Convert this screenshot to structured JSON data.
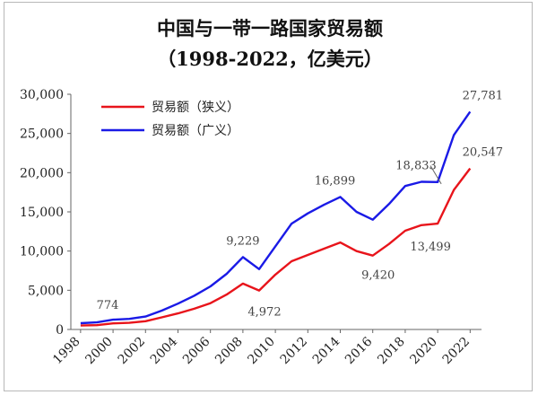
{
  "chart_data": {
    "type": "line",
    "title": "中国与一带一路国家贸易额",
    "subtitle": "（1998-2022，亿美元）",
    "xlabel": "",
    "ylabel": "",
    "x": [
      1998,
      1999,
      2000,
      2001,
      2002,
      2003,
      2004,
      2005,
      2006,
      2007,
      2008,
      2009,
      2010,
      2011,
      2012,
      2013,
      2014,
      2015,
      2016,
      2017,
      2018,
      2019,
      2020,
      2021,
      2022
    ],
    "ylim": [
      0,
      30000
    ],
    "yticks": [
      0,
      5000,
      10000,
      15000,
      20000,
      25000,
      30000
    ],
    "ytick_labels": [
      "0",
      "5,000",
      "10,000",
      "15,000",
      "20,000",
      "25,000",
      "30,000"
    ],
    "xticks": [
      1998,
      2000,
      2002,
      2004,
      2006,
      2008,
      2010,
      2012,
      2014,
      2016,
      2018,
      2020,
      2022
    ],
    "xtick_labels": [
      "1998",
      "2000",
      "2002",
      "2004",
      "2006",
      "2008",
      "2010",
      "2012",
      "2014",
      "2016",
      "2018",
      "2020",
      "2022"
    ],
    "grid": false,
    "legend_position": "top-left",
    "series": [
      {
        "name": "贸易额（狭义）",
        "color": "#e8141b",
        "values": [
          500,
          550,
          774,
          850,
          1050,
          1550,
          2050,
          2650,
          3350,
          4450,
          5850,
          4972,
          7000,
          8700,
          9500,
          10300,
          11100,
          10000,
          9420,
          10900,
          12600,
          13300,
          13499,
          17800,
          20547
        ]
      },
      {
        "name": "贸易额（广义）",
        "color": "#1a1ae6",
        "values": [
          800,
          900,
          1250,
          1350,
          1650,
          2400,
          3300,
          4300,
          5500,
          7100,
          9229,
          7700,
          10600,
          13500,
          14800,
          15900,
          16899,
          15000,
          14000,
          16000,
          18300,
          18833,
          18800,
          24800,
          27781
        ]
      }
    ],
    "annotations": [
      {
        "text": "774",
        "x": 2000,
        "y": 774
      },
      {
        "text": "9,229",
        "x": 2008,
        "y": 9229
      },
      {
        "text": "4,972",
        "x": 2009,
        "y": 4972
      },
      {
        "text": "16,899",
        "x": 2014,
        "y": 16899
      },
      {
        "text": "9,420",
        "x": 2016,
        "y": 9420
      },
      {
        "text": "18,833",
        "x": 2019,
        "y": 18833
      },
      {
        "text": "13,499",
        "x": 2020,
        "y": 13499
      },
      {
        "text": "20,547",
        "x": 2022,
        "y": 20547
      },
      {
        "text": "27,781",
        "x": 2022,
        "y": 27781
      }
    ]
  }
}
